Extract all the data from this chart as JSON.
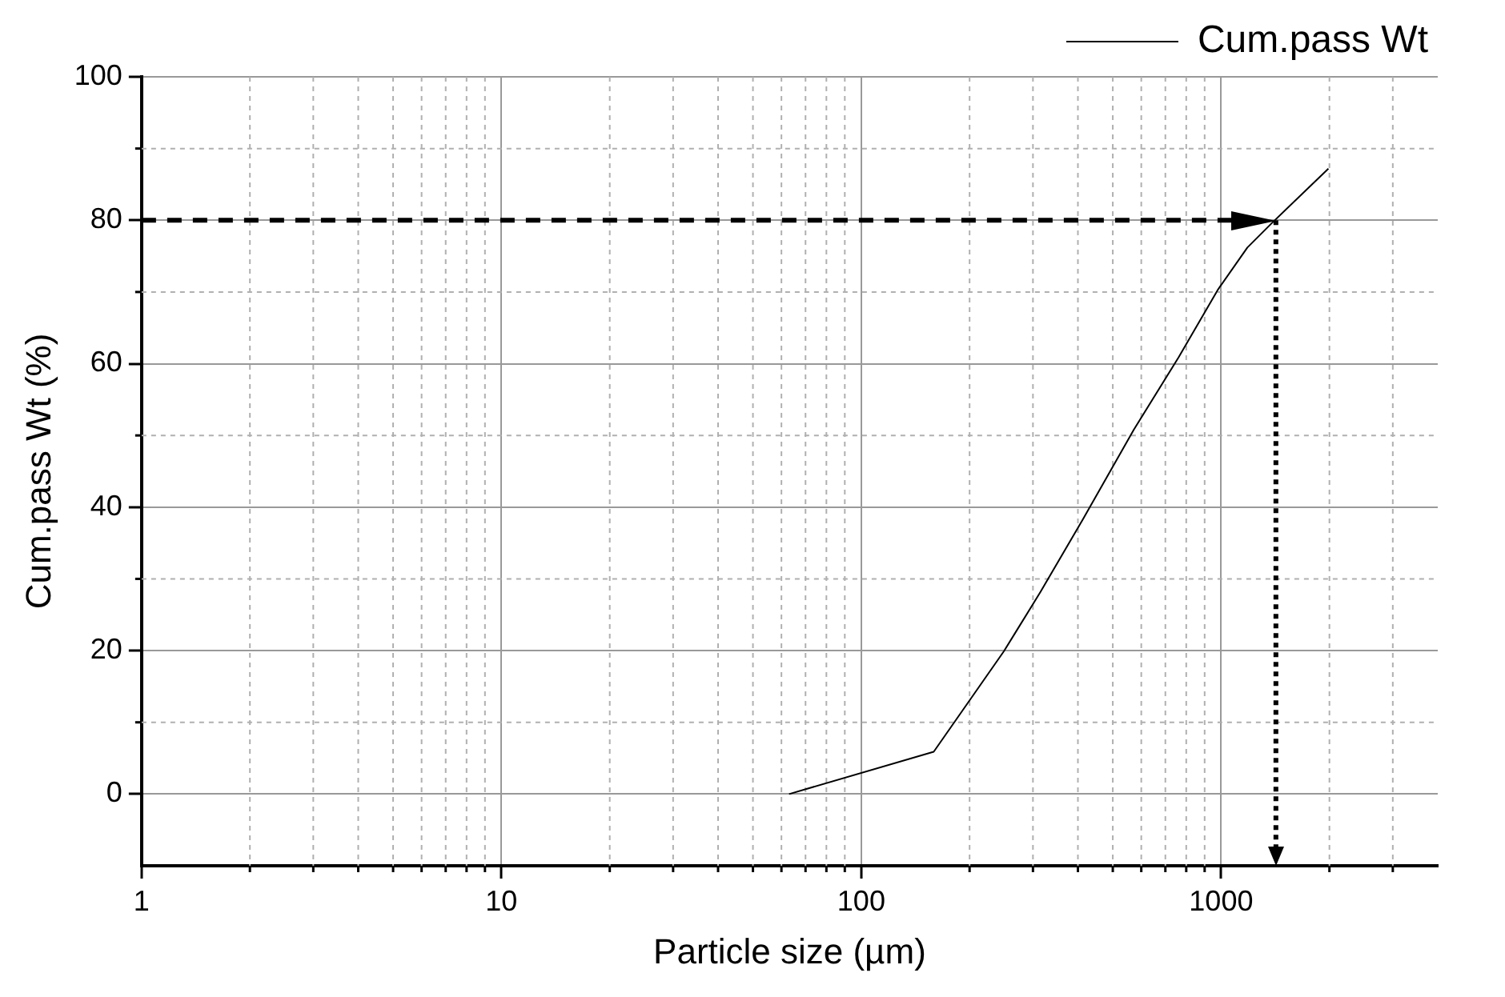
{
  "chart_data": {
    "type": "line",
    "xlabel": "Particle size (µm)",
    "ylabel": "Cum.pass Wt (%)",
    "log": "x",
    "x": [
      63,
      159,
      249,
      315,
      413,
      572,
      762,
      982,
      1183,
      1383,
      1987
    ],
    "series": [
      {
        "name": "Cum.pass Wt",
        "color": "#000000",
        "values": [
          0,
          5.9,
          19.9,
          28.2,
          38.3,
          50.8,
          60.9,
          70.4,
          76.2,
          79.6,
          87.2
        ]
      }
    ],
    "xlim": [
      1,
      4000
    ],
    "xticks": [
      1,
      10,
      100,
      1000
    ],
    "ylim": [
      -10,
      100
    ],
    "yticks": [
      0,
      20,
      40,
      60,
      80,
      100
    ],
    "grid": true,
    "legend": "top right",
    "marker": "none",
    "line_style": "solid",
    "ref_lines": [
      {
        "axis": "y",
        "value": 80,
        "line_style": "dashed",
        "color": "#000000"
      },
      {
        "axis": "x",
        "value": 1420,
        "line_style": "dotted",
        "color": "#000000"
      }
    ]
  }
}
